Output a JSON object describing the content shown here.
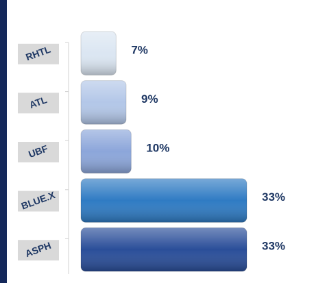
{
  "chart_data": {
    "type": "bar",
    "orientation": "horizontal",
    "categories": [
      "RHTL",
      "ATL",
      "UBF",
      "BLUE.X",
      "ASPH"
    ],
    "values": [
      7,
      9,
      10,
      33,
      33
    ],
    "value_labels": [
      "7%",
      "9%",
      "10%",
      "33%",
      "33%"
    ],
    "colors": [
      "#dbe6f2",
      "#b3c7e8",
      "#8ca6da",
      "#2f7bc3",
      "#2a4e99"
    ]
  }
}
